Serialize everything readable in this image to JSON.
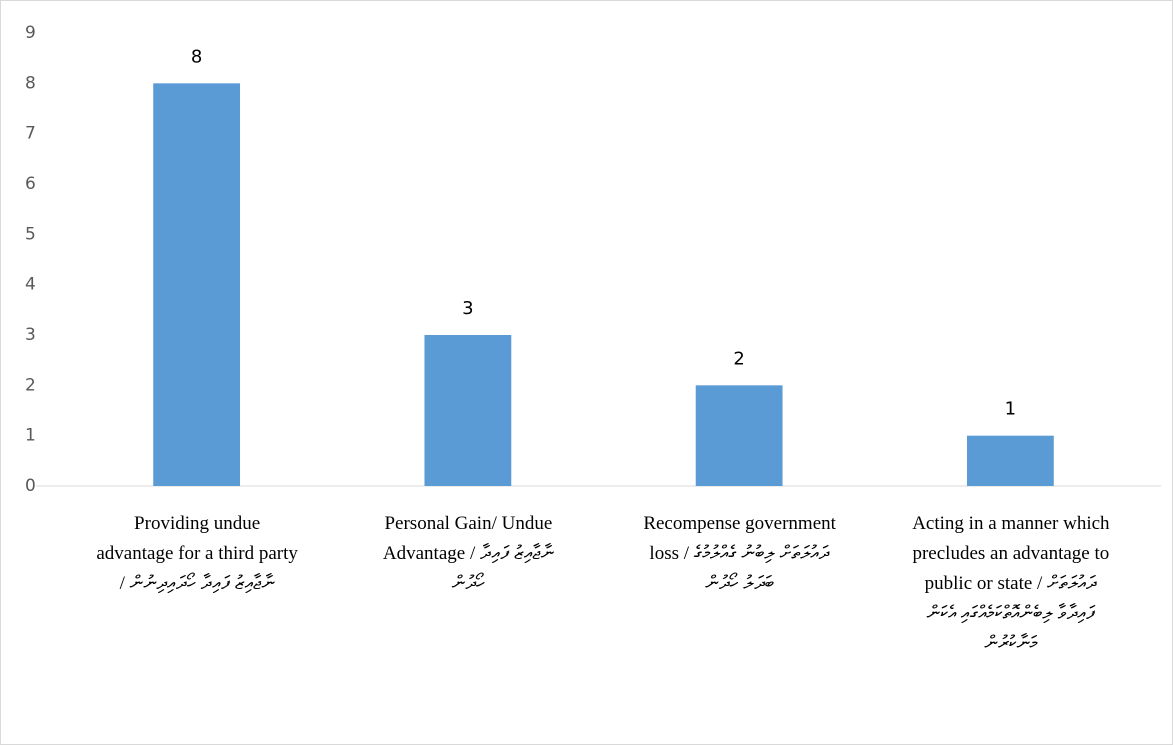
{
  "chart_data": {
    "type": "bar",
    "categories": [
      "Providing undue advantage for a third party / ނާޖާއިޒު ފައިދާ ހޯދައިދިނުން",
      "Personal Gain/ Undue Advantage / ނާޖާއިޒު ފައިދާ ހޯދުން",
      "Recompense government loss / ދައުލަތަށް ލިބުނު ގެއްލުމުގެ ބަދަލު ހޯދުން",
      "Acting in a manner which precludes an advantage to public or state / ދައުލަތަށް ފައިދާވާ ލިބެންއޮތްކަމެއްގައި އެކަން މަނާކުރުން"
    ],
    "values": [
      8,
      3,
      2,
      1
    ],
    "color": "#5b9bd5",
    "ylim": [
      0,
      9
    ],
    "yticks": [
      0,
      1,
      2,
      3,
      4,
      5,
      6,
      7,
      8,
      9
    ],
    "grid": false
  }
}
